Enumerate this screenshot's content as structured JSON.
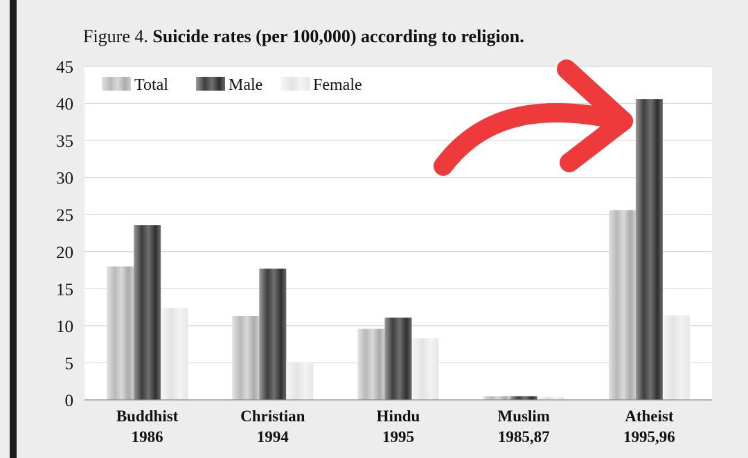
{
  "title": {
    "prefix": "Figure 4.",
    "main": "Suicide rates (per 100,000) according to religion."
  },
  "chart_data": {
    "type": "bar",
    "categories": [
      "Buddhist",
      "Christian",
      "Hindu",
      "Muslim",
      "Atheist"
    ],
    "category_years": [
      "1986",
      "1994",
      "1995",
      "1985,87",
      "1995,96"
    ],
    "series": [
      {
        "name": "Total",
        "values": [
          18.0,
          11.3,
          9.6,
          0.5,
          25.6
        ]
      },
      {
        "name": "Male",
        "values": [
          23.6,
          17.7,
          11.1,
          0.5,
          40.6
        ]
      },
      {
        "name": "Female",
        "values": [
          12.4,
          5.0,
          8.3,
          0.4,
          11.4
        ]
      }
    ],
    "yticks": [
      "0",
      "5",
      "10",
      "15",
      "20",
      "25",
      "30",
      "35",
      "40",
      "45"
    ],
    "ylim": [
      0,
      45
    ],
    "grid": true,
    "legend_position": "top-left",
    "colors": {
      "Total": "#c4c4c4",
      "Male": "#555555",
      "Female": "#ececec",
      "annotation_arrow": "#ee3a3a"
    }
  },
  "annotation": {
    "type": "arrow",
    "icon": "red-hand-drawn-arrow-icon",
    "points_to": "Atheist Male"
  }
}
